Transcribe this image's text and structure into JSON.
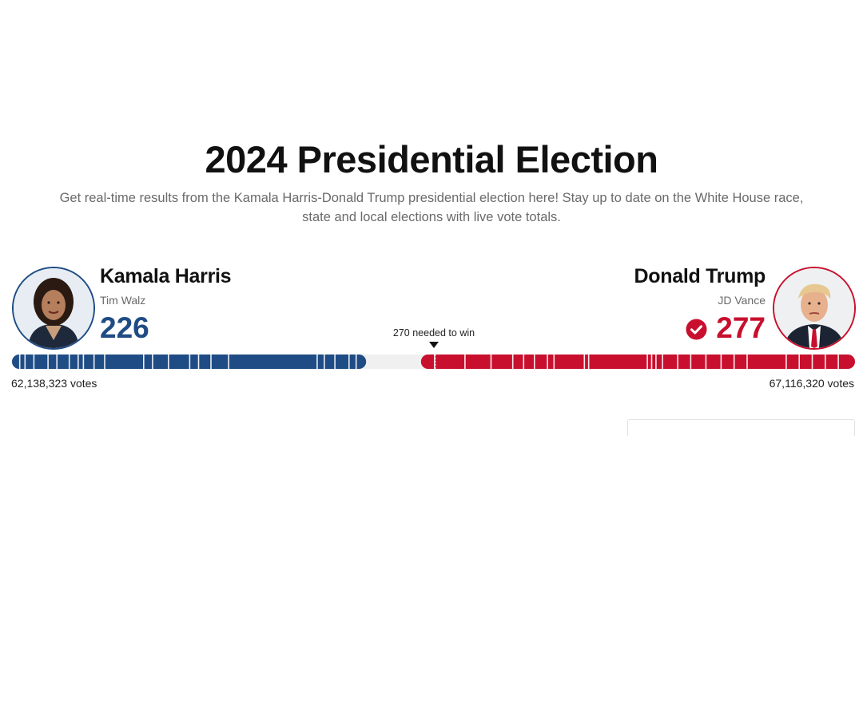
{
  "page": {
    "title": "2024 Presidential Election",
    "subtitle": "Get real-time results from the Kamala Harris-Donald Trump presidential election here! Stay up to date on the White House race, state and local elections with live vote totals."
  },
  "threshold": {
    "label": "270 needed to win",
    "value": 270
  },
  "electoral_total": 538,
  "candidates": {
    "dem": {
      "name": "Kamala Harris",
      "running_mate": "Tim Walz",
      "electoral_votes": "226",
      "popular_votes": "62,138,323 votes",
      "color": "#1f4c85",
      "winner": false
    },
    "rep": {
      "name": "Donald Trump",
      "running_mate": "JD Vance",
      "electoral_votes": "277",
      "popular_votes": "67,116,320 votes",
      "color": "#c8102e",
      "winner": true,
      "winner_icon": "check-circle-icon"
    }
  },
  "uncalled_color": "#f0f0f0"
}
